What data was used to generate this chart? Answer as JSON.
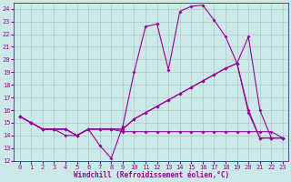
{
  "background_color": "#cde8e8",
  "grid_color": "#aacccc",
  "line_color": "#990099",
  "title": "Windchill (Refroidissement éolien,°C)",
  "xlim": [
    -0.5,
    23.5
  ],
  "ylim": [
    12,
    24.5
  ],
  "xticks": [
    0,
    1,
    2,
    3,
    4,
    5,
    6,
    7,
    8,
    9,
    10,
    11,
    12,
    13,
    14,
    15,
    16,
    17,
    18,
    19,
    20,
    21,
    22,
    23
  ],
  "yticks": [
    12,
    13,
    14,
    15,
    16,
    17,
    18,
    19,
    20,
    21,
    22,
    23,
    24
  ],
  "series1_x": [
    0,
    1,
    2,
    3,
    4,
    5,
    6,
    7,
    8,
    9,
    10,
    11,
    12,
    13,
    14,
    15,
    16,
    17,
    18,
    19,
    20,
    21,
    22,
    23
  ],
  "series1_y": [
    15.5,
    15.0,
    14.5,
    14.5,
    14.5,
    14.0,
    14.5,
    13.2,
    12.2,
    14.7,
    19.0,
    22.6,
    22.8,
    19.2,
    23.8,
    24.2,
    24.3,
    23.1,
    21.8,
    19.7,
    15.8,
    13.8,
    13.8,
    13.8
  ],
  "series2_x": [
    0,
    1,
    2,
    3,
    4,
    5,
    6,
    7,
    8,
    9,
    10,
    11,
    12,
    13,
    14,
    15,
    16,
    17,
    18,
    19,
    20,
    21,
    22,
    23
  ],
  "series2_y": [
    15.5,
    15.0,
    14.5,
    14.5,
    14.0,
    14.0,
    14.5,
    14.5,
    14.5,
    14.3,
    14.3,
    14.3,
    14.3,
    14.3,
    14.3,
    14.3,
    14.3,
    14.3,
    14.3,
    14.3,
    14.3,
    14.3,
    14.3,
    13.8
  ],
  "series3_x": [
    0,
    1,
    2,
    3,
    4,
    5,
    6,
    7,
    8,
    9,
    10,
    11,
    12,
    13,
    14,
    15,
    16,
    17,
    18,
    19,
    20,
    21,
    22,
    23
  ],
  "series3_y": [
    15.5,
    15.0,
    14.5,
    14.5,
    14.5,
    14.0,
    14.5,
    14.5,
    14.5,
    14.5,
    15.3,
    15.8,
    16.3,
    16.8,
    17.3,
    17.8,
    18.3,
    18.8,
    19.3,
    19.7,
    21.8,
    16.0,
    13.8,
    13.8
  ],
  "series4_x": [
    0,
    1,
    2,
    3,
    4,
    5,
    6,
    7,
    8,
    9,
    10,
    11,
    12,
    13,
    14,
    15,
    16,
    17,
    18,
    19,
    20,
    21,
    22,
    23
  ],
  "series4_y": [
    15.5,
    15.0,
    14.5,
    14.5,
    14.5,
    14.0,
    14.5,
    14.5,
    14.5,
    14.5,
    15.3,
    15.8,
    16.3,
    16.8,
    17.3,
    17.8,
    18.3,
    18.8,
    19.3,
    19.7,
    16.0,
    13.8,
    13.8,
    13.8
  ]
}
